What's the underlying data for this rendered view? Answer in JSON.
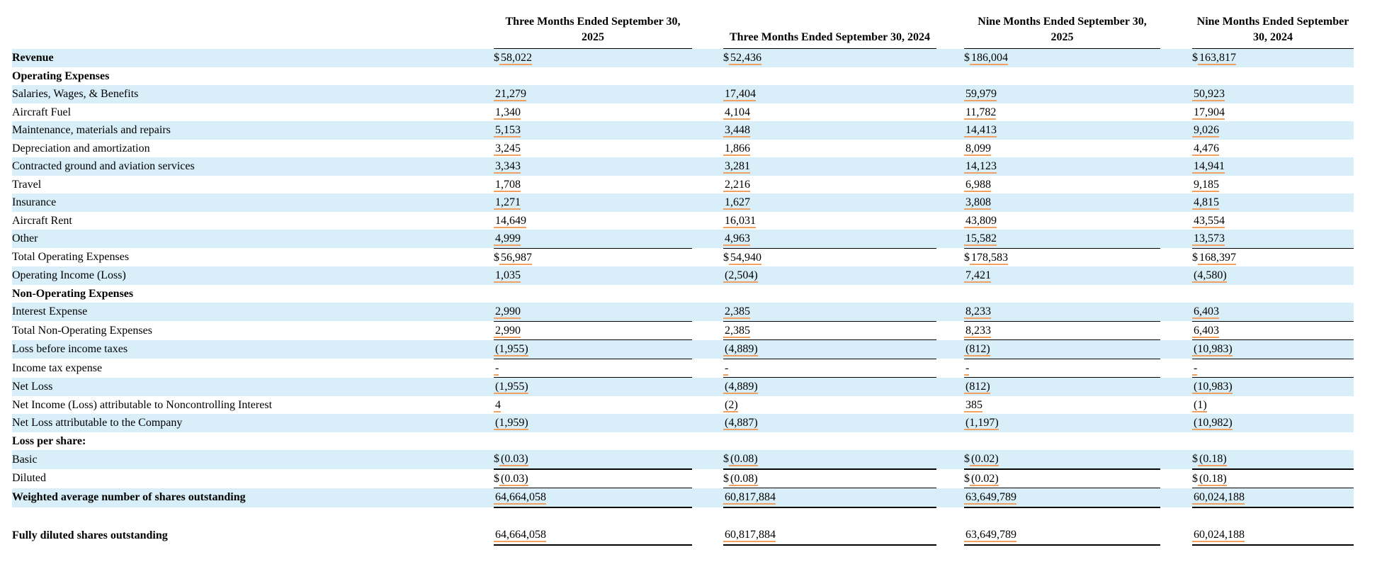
{
  "currency_symbol": "$",
  "columns": [
    "Three Months Ended September 30, 2025",
    "Three Months Ended September 30, 2024",
    "Nine Months Ended September 30, 2025",
    "Nine Months Ended September 30, 2024"
  ],
  "rows": [
    {
      "label": "Revenue",
      "bold": true,
      "dollar": true,
      "values": [
        "58,022",
        "52,436",
        "186,004",
        "163,817"
      ]
    },
    {
      "label": "Operating Expenses",
      "bold": true,
      "dollar": false,
      "values": []
    },
    {
      "label": "Salaries, Wages, & Benefits",
      "bold": false,
      "dollar": false,
      "values": [
        "21,279",
        "17,404",
        "59,979",
        "50,923"
      ]
    },
    {
      "label": "Aircraft Fuel",
      "bold": false,
      "dollar": false,
      "values": [
        "1,340",
        "4,104",
        "11,782",
        "17,904"
      ]
    },
    {
      "label": "Maintenance, materials and repairs",
      "bold": false,
      "dollar": false,
      "values": [
        "5,153",
        "3,448",
        "14,413",
        "9,026"
      ]
    },
    {
      "label": "Depreciation and amortization",
      "bold": false,
      "dollar": false,
      "values": [
        "3,245",
        "1,866",
        "8,099",
        "4,476"
      ]
    },
    {
      "label": "Contracted ground and aviation services",
      "bold": false,
      "dollar": false,
      "values": [
        "3,343",
        "3,281",
        "14,123",
        "14,941"
      ]
    },
    {
      "label": "Travel",
      "bold": false,
      "dollar": false,
      "values": [
        "1,708",
        "2,216",
        "6,988",
        "9,185"
      ]
    },
    {
      "label": "Insurance",
      "bold": false,
      "dollar": false,
      "values": [
        "1,271",
        "1,627",
        "3,808",
        "4,815"
      ]
    },
    {
      "label": "Aircraft Rent",
      "bold": false,
      "dollar": false,
      "values": [
        "14,649",
        "16,031",
        "43,809",
        "43,554"
      ]
    },
    {
      "label": "Other",
      "bold": false,
      "dollar": false,
      "values": [
        "4,999",
        "4,963",
        "15,582",
        "13,573"
      ]
    },
    {
      "label": "Total Operating Expenses",
      "bold": false,
      "dollar": true,
      "values": [
        "56,987",
        "54,940",
        "178,583",
        "168,397"
      ]
    },
    {
      "label": "Operating Income (Loss)",
      "bold": false,
      "dollar": false,
      "values": [
        "1,035",
        "(2,504)",
        "7,421",
        "(4,580)"
      ]
    },
    {
      "label": "Non-Operating Expenses",
      "bold": true,
      "dollar": false,
      "values": []
    },
    {
      "label": "Interest Expense",
      "bold": false,
      "dollar": false,
      "values": [
        "2,990",
        "2,385",
        "8,233",
        "6,403"
      ]
    },
    {
      "label": "Total Non-Operating Expenses",
      "bold": false,
      "dollar": false,
      "values": [
        "2,990",
        "2,385",
        "8,233",
        "6,403"
      ]
    },
    {
      "label": "Loss before income taxes",
      "bold": false,
      "dollar": false,
      "values": [
        "(1,955)",
        "(4,889)",
        "(812)",
        "(10,983)"
      ]
    },
    {
      "label": "Income tax expense",
      "bold": false,
      "dollar": false,
      "values": [
        "-",
        "-",
        "-",
        "-"
      ]
    },
    {
      "label": "Net Loss",
      "bold": false,
      "dollar": false,
      "values": [
        "(1,955)",
        "(4,889)",
        "(812)",
        "(10,983)"
      ]
    },
    {
      "label": "Net Income (Loss) attributable to Noncontrolling Interest",
      "bold": false,
      "dollar": false,
      "values": [
        "4",
        "(2)",
        "385",
        "(1)"
      ]
    },
    {
      "label": "Net Loss attributable to the Company",
      "bold": false,
      "dollar": false,
      "values": [
        "(1,959)",
        "(4,887)",
        "(1,197)",
        "(10,982)"
      ]
    },
    {
      "label": "Loss per share:",
      "bold": true,
      "dollar": false,
      "values": []
    },
    {
      "label": "Basic",
      "bold": false,
      "dollar": true,
      "values": [
        "(0.03)",
        "(0.08)",
        "(0.02)",
        "(0.18)"
      ]
    },
    {
      "label": "Diluted",
      "bold": false,
      "dollar": true,
      "values": [
        "(0.03)",
        "(0.08)",
        "(0.02)",
        "(0.18)"
      ]
    },
    {
      "label": "Weighted average number of shares outstanding",
      "bold": true,
      "dollar": false,
      "values": [
        "64,664,058",
        "60,817,884",
        "63,649,789",
        "60,024,188"
      ]
    },
    {
      "label": "Fully diluted shares outstanding",
      "bold": true,
      "dollar": false,
      "values": [
        "64,664,058",
        "60,817,884",
        "63,649,789",
        "60,024,188"
      ]
    }
  ]
}
